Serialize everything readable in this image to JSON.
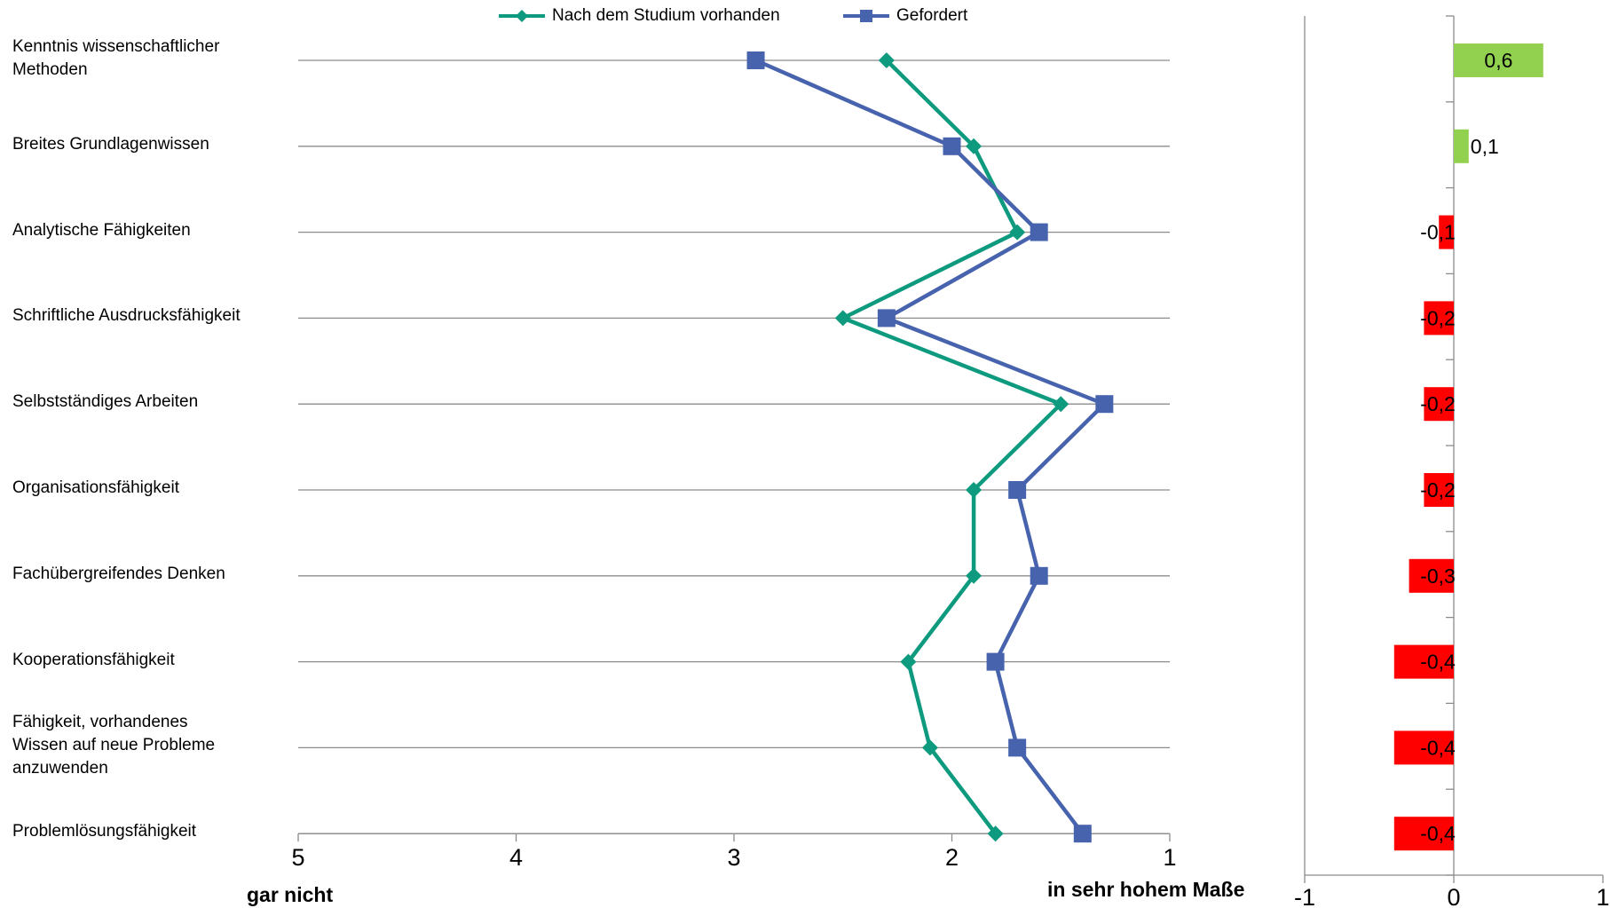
{
  "chart_data": [
    {
      "type": "line",
      "categories": [
        "Kenntnis wissenschaftlicher Methoden",
        "Breites Grundlagenwissen",
        "Analytische Fähigkeiten",
        "Schriftliche Ausdrucksfähigkeit",
        "Selbstständiges Arbeiten",
        "Organisationsfähigkeit",
        "Fachübergreifendes Denken",
        "Kooperationsfähigkeit",
        "Fähigkeit, vorhandenes Wissen auf neue Probleme anzuwenden",
        "Problemlösungsfähigkeit"
      ],
      "category_lines": [
        [
          "Kenntnis wissenschaftlicher",
          "Methoden"
        ],
        [
          "Breites Grundlagenwissen"
        ],
        [
          "Analytische Fähigkeiten"
        ],
        [
          "Schriftliche Ausdrucksfähigkeit"
        ],
        [
          "Selbstständiges Arbeiten"
        ],
        [
          "Organisationsfähigkeit"
        ],
        [
          "Fachübergreifendes Denken"
        ],
        [
          "Kooperationsfähigkeit"
        ],
        [
          "Fähigkeit, vorhandenes",
          "Wissen auf neue Probleme",
          "anzuwenden"
        ],
        [
          "Problemlösungsfähigkeit"
        ]
      ],
      "series": [
        {
          "name": "Nach dem Studium vorhanden",
          "marker": "diamond",
          "color": "#0E9A7E",
          "values": [
            2.3,
            1.9,
            1.7,
            2.5,
            1.5,
            1.9,
            1.9,
            2.2,
            2.1,
            1.8
          ]
        },
        {
          "name": "Gefordert",
          "marker": "square",
          "color": "#4763AE",
          "values": [
            2.9,
            2.0,
            1.6,
            2.3,
            1.3,
            1.7,
            1.6,
            1.8,
            1.7,
            1.4
          ]
        }
      ],
      "x_axis": {
        "range": [
          5,
          1
        ],
        "reversed": true,
        "ticks": [
          "5",
          "4",
          "3",
          "2",
          "1"
        ]
      },
      "x_left_label": "gar nicht",
      "x_right_label": "in sehr hohem Maße",
      "legend_position": "top",
      "grid": "horizontal"
    },
    {
      "type": "bar",
      "orientation": "horizontal",
      "values": [
        0.6,
        0.1,
        -0.1,
        -0.2,
        -0.2,
        -0.2,
        -0.3,
        -0.4,
        -0.4,
        -0.4
      ],
      "labels": [
        "0,6",
        "0,1",
        "-0,1",
        "-0,2",
        "-0,2",
        "-0,2",
        "-0,3",
        "-0,4",
        "-0,4",
        "-0,4"
      ],
      "positive_color": "#92D050",
      "negative_color": "#FF0000",
      "x_axis": {
        "range": [
          -1,
          1
        ],
        "ticks": [
          "-1",
          "0",
          "1"
        ]
      },
      "grid": false
    }
  ]
}
